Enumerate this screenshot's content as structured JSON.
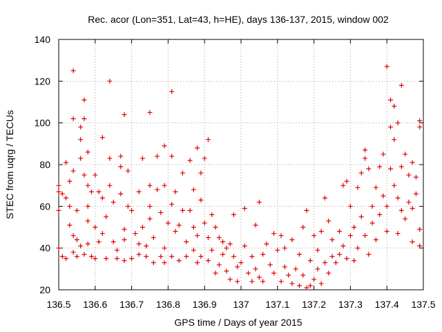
{
  "chart_data": {
    "type": "scatter",
    "title": "Rec. acor (Lon=351, Lat=43, h=HE), days 136-137, 2015, window 002",
    "xlabel": "GPS time / Days of year 2015",
    "ylabel": "STEC from uqrg / TECUs",
    "xlim": [
      136.5,
      137.5
    ],
    "ylim": [
      20,
      140
    ],
    "xticks": [
      136.5,
      136.6,
      136.7,
      136.8,
      136.9,
      137.0,
      137.1,
      137.2,
      137.3,
      137.4,
      137.5
    ],
    "xtick_labels": [
      "136.5",
      "136.6",
      "136.7",
      "136.8",
      "136.9",
      "137",
      "137.1",
      "137.2",
      "137.3",
      "137.4",
      "137.5"
    ],
    "yticks": [
      20,
      40,
      60,
      80,
      100,
      120,
      140
    ],
    "ytick_labels": [
      "20",
      "40",
      "60",
      "80",
      "100",
      "120",
      "140"
    ],
    "grid": true,
    "marker": "plus",
    "colors": {
      "series": "#e00000",
      "grid": "#a0a0a0",
      "axis": "#000000"
    },
    "series": [
      {
        "points": [
          [
            136.5,
            70
          ],
          [
            136.5,
            67
          ],
          [
            136.5,
            58
          ],
          [
            136.5,
            40
          ],
          [
            136.51,
            36
          ],
          [
            136.51,
            66
          ],
          [
            136.52,
            64
          ],
          [
            136.52,
            35
          ],
          [
            136.52,
            81
          ],
          [
            136.53,
            51
          ],
          [
            136.53,
            72
          ],
          [
            136.53,
            60
          ],
          [
            136.54,
            77
          ],
          [
            136.54,
            102
          ],
          [
            136.54,
            125
          ],
          [
            136.54,
            46
          ],
          [
            136.54,
            38
          ],
          [
            136.55,
            36
          ],
          [
            136.55,
            44
          ],
          [
            136.55,
            58
          ],
          [
            136.56,
            98
          ],
          [
            136.56,
            92
          ],
          [
            136.56,
            83
          ],
          [
            136.56,
            41
          ],
          [
            136.57,
            111
          ],
          [
            136.57,
            102
          ],
          [
            136.57,
            75
          ],
          [
            136.57,
            37
          ],
          [
            136.58,
            70
          ],
          [
            136.58,
            86
          ],
          [
            136.58,
            53
          ],
          [
            136.58,
            60
          ],
          [
            136.58,
            42
          ],
          [
            136.59,
            36
          ],
          [
            136.59,
            67
          ],
          [
            136.6,
            75
          ],
          [
            136.6,
            50
          ],
          [
            136.6,
            35
          ],
          [
            136.61,
            43
          ],
          [
            136.61,
            67
          ],
          [
            136.62,
            93
          ],
          [
            136.62,
            64
          ],
          [
            136.62,
            47
          ],
          [
            136.63,
            35
          ],
          [
            136.63,
            55
          ],
          [
            136.64,
            120
          ],
          [
            136.64,
            70
          ],
          [
            136.64,
            83
          ],
          [
            136.65,
            62
          ],
          [
            136.65,
            43
          ],
          [
            136.66,
            39
          ],
          [
            136.66,
            35
          ],
          [
            136.67,
            84
          ],
          [
            136.67,
            79
          ],
          [
            136.67,
            66
          ],
          [
            136.68,
            104
          ],
          [
            136.68,
            49
          ],
          [
            136.68,
            44
          ],
          [
            136.68,
            34
          ],
          [
            136.69,
            60
          ],
          [
            136.69,
            77
          ],
          [
            136.7,
            35
          ],
          [
            136.7,
            58
          ],
          [
            136.71,
            47
          ],
          [
            136.72,
            42
          ],
          [
            136.72,
            67
          ],
          [
            136.72,
            37
          ],
          [
            136.73,
            83
          ],
          [
            136.73,
            50
          ],
          [
            136.74,
            36
          ],
          [
            136.74,
            41
          ],
          [
            136.75,
            105
          ],
          [
            136.75,
            60
          ],
          [
            136.75,
            70
          ],
          [
            136.75,
            54
          ],
          [
            136.76,
            33
          ],
          [
            136.76,
            45
          ],
          [
            136.77,
            68
          ],
          [
            136.77,
            84
          ],
          [
            136.78,
            36
          ],
          [
            136.78,
            57
          ],
          [
            136.79,
            89
          ],
          [
            136.79,
            70
          ],
          [
            136.79,
            40
          ],
          [
            136.79,
            33
          ],
          [
            136.8,
            52
          ],
          [
            136.81,
            115
          ],
          [
            136.81,
            61
          ],
          [
            136.81,
            84
          ],
          [
            136.81,
            36
          ],
          [
            136.82,
            48
          ],
          [
            136.82,
            67
          ],
          [
            136.83,
            34
          ],
          [
            136.83,
            51
          ],
          [
            136.84,
            76
          ],
          [
            136.84,
            58
          ],
          [
            136.85,
            36
          ],
          [
            136.85,
            43
          ],
          [
            136.86,
            82
          ],
          [
            136.86,
            58
          ],
          [
            136.87,
            68
          ],
          [
            136.87,
            50
          ],
          [
            136.87,
            39
          ],
          [
            136.88,
            33
          ],
          [
            136.88,
            88
          ],
          [
            136.88,
            46
          ],
          [
            136.89,
            76
          ],
          [
            136.89,
            63
          ],
          [
            136.89,
            36
          ],
          [
            136.9,
            83
          ],
          [
            136.9,
            52
          ],
          [
            136.91,
            92
          ],
          [
            136.91,
            45
          ],
          [
            136.91,
            34
          ],
          [
            136.92,
            56
          ],
          [
            136.92,
            39
          ],
          [
            136.93,
            28
          ],
          [
            136.93,
            50
          ],
          [
            136.94,
            45
          ],
          [
            136.94,
            32
          ],
          [
            136.95,
            37
          ],
          [
            136.95,
            43
          ],
          [
            136.96,
            29
          ],
          [
            136.96,
            40
          ],
          [
            136.97,
            42
          ],
          [
            136.97,
            25
          ],
          [
            136.98,
            56
          ],
          [
            136.98,
            36
          ],
          [
            136.99,
            31
          ],
          [
            136.99,
            24
          ],
          [
            137.0,
            33
          ],
          [
            137.01,
            59
          ],
          [
            137.01,
            41
          ],
          [
            137.02,
            28
          ],
          [
            137.03,
            36
          ],
          [
            137.03,
            24
          ],
          [
            137.04,
            51
          ],
          [
            137.04,
            30
          ],
          [
            137.05,
            62
          ],
          [
            137.05,
            26
          ],
          [
            137.06,
            37
          ],
          [
            137.06,
            24
          ],
          [
            137.07,
            42
          ],
          [
            137.08,
            32
          ],
          [
            137.09,
            47
          ],
          [
            137.09,
            28
          ],
          [
            137.1,
            39
          ],
          [
            137.11,
            46
          ],
          [
            137.11,
            24
          ],
          [
            137.12,
            31
          ],
          [
            137.12,
            40
          ],
          [
            137.13,
            27
          ],
          [
            137.14,
            44
          ],
          [
            137.14,
            23
          ],
          [
            137.15,
            30
          ],
          [
            137.16,
            37
          ],
          [
            137.16,
            22
          ],
          [
            137.17,
            50
          ],
          [
            137.17,
            27
          ],
          [
            137.18,
            21
          ],
          [
            137.18,
            58
          ],
          [
            137.19,
            34
          ],
          [
            137.19,
            22
          ],
          [
            137.2,
            46
          ],
          [
            137.2,
            25
          ],
          [
            137.21,
            30
          ],
          [
            137.21,
            39
          ],
          [
            137.22,
            23
          ],
          [
            137.22,
            48
          ],
          [
            137.23,
            64
          ],
          [
            137.23,
            33
          ],
          [
            137.24,
            28
          ],
          [
            137.24,
            53
          ],
          [
            137.25,
            36
          ],
          [
            137.25,
            44
          ],
          [
            137.26,
            33
          ],
          [
            137.27,
            48
          ],
          [
            137.27,
            37
          ],
          [
            137.28,
            70
          ],
          [
            137.28,
            41
          ],
          [
            137.29,
            72
          ],
          [
            137.29,
            35
          ],
          [
            137.3,
            60
          ],
          [
            137.3,
            46
          ],
          [
            137.31,
            50
          ],
          [
            137.31,
            34
          ],
          [
            137.32,
            69
          ],
          [
            137.32,
            40
          ],
          [
            137.33,
            76
          ],
          [
            137.33,
            55
          ],
          [
            137.34,
            83
          ],
          [
            137.34,
            87
          ],
          [
            137.34,
            46
          ],
          [
            137.35,
            78
          ],
          [
            137.35,
            37
          ],
          [
            137.36,
            52
          ],
          [
            137.36,
            60
          ],
          [
            137.37,
            69
          ],
          [
            137.37,
            44
          ],
          [
            137.38,
            79
          ],
          [
            137.38,
            56
          ],
          [
            137.39,
            65
          ],
          [
            137.39,
            85
          ],
          [
            137.4,
            127
          ],
          [
            137.4,
            60
          ],
          [
            137.4,
            48
          ],
          [
            137.41,
            111
          ],
          [
            137.41,
            78
          ],
          [
            137.41,
            98
          ],
          [
            137.42,
            108
          ],
          [
            137.42,
            92
          ],
          [
            137.42,
            70
          ],
          [
            137.43,
            100
          ],
          [
            137.43,
            64
          ],
          [
            137.43,
            47
          ],
          [
            137.44,
            118
          ],
          [
            137.44,
            79
          ],
          [
            137.44,
            58
          ],
          [
            137.45,
            85
          ],
          [
            137.45,
            54
          ],
          [
            137.46,
            75
          ],
          [
            137.46,
            62
          ],
          [
            137.47,
            81
          ],
          [
            137.47,
            59
          ],
          [
            137.47,
            43
          ],
          [
            137.48,
            74
          ],
          [
            137.48,
            66
          ],
          [
            137.49,
            101
          ],
          [
            137.49,
            98
          ],
          [
            137.49,
            49
          ],
          [
            137.49,
            41
          ]
        ]
      }
    ]
  }
}
